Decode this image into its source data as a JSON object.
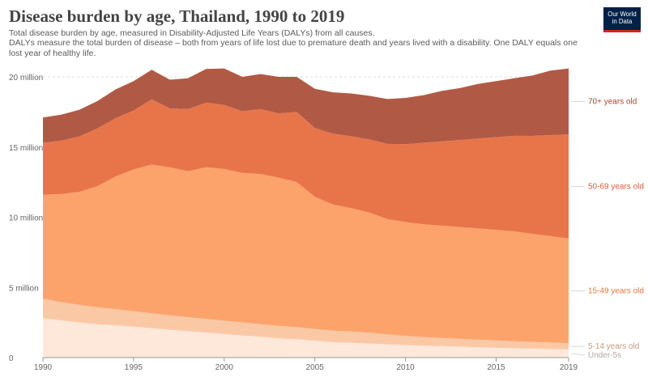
{
  "header": {
    "title": "Disease burden by age, Thailand, 1990 to 2019",
    "subtitle_line1": "Total disease burden by age, measured in Disability-Adjusted Life Years (DALYs) from all causes.",
    "subtitle_line2": "DALYs measure the total burden of disease – both from years of life lost due to premature death and years lived with a disability. One DALY equals one lost year of healthy life."
  },
  "logo": {
    "line1": "Our World",
    "line2": "in Data",
    "bg_color": "#002147",
    "accent_color": "#ce261e"
  },
  "chart_data": {
    "type": "area",
    "stacked": true,
    "x": [
      1990,
      1991,
      1992,
      1993,
      1994,
      1995,
      1996,
      1997,
      1998,
      1999,
      2000,
      2001,
      2002,
      2003,
      2004,
      2005,
      2006,
      2007,
      2008,
      2009,
      2010,
      2011,
      2012,
      2013,
      2014,
      2015,
      2016,
      2017,
      2018,
      2019
    ],
    "series": [
      {
        "name": "Under-5s",
        "color": "#fde8da",
        "label_color": "#b8a79e",
        "values": [
          2.8,
          2.65,
          2.5,
          2.38,
          2.3,
          2.2,
          2.1,
          1.98,
          1.88,
          1.78,
          1.68,
          1.58,
          1.48,
          1.38,
          1.3,
          1.2,
          1.1,
          1.05,
          1.0,
          0.95,
          0.9,
          0.85,
          0.82,
          0.78,
          0.74,
          0.7,
          0.67,
          0.64,
          0.61,
          0.58
        ]
      },
      {
        "name": "5-14 years old",
        "color": "#fbc8a6",
        "label_color": "#c49a80",
        "values": [
          1.4,
          1.3,
          1.25,
          1.2,
          1.15,
          1.1,
          1.05,
          1.02,
          1.0,
          0.98,
          0.95,
          0.93,
          0.9,
          0.88,
          0.86,
          0.84,
          0.82,
          0.8,
          0.78,
          0.7,
          0.65,
          0.6,
          0.58,
          0.56,
          0.54,
          0.52,
          0.5,
          0.48,
          0.46,
          0.44
        ]
      },
      {
        "name": "15-49 years old",
        "color": "#fca36c",
        "label_color": "#e07b3c",
        "values": [
          7.4,
          7.7,
          8.05,
          8.62,
          9.45,
          10.1,
          10.6,
          10.55,
          10.4,
          10.8,
          10.8,
          10.64,
          10.7,
          10.56,
          10.35,
          9.41,
          8.98,
          8.8,
          8.55,
          8.22,
          8.1,
          8.05,
          8.0,
          7.96,
          7.92,
          7.88,
          7.83,
          7.69,
          7.58,
          7.46
        ]
      },
      {
        "name": "50-69 years old",
        "color": "#e8754a",
        "label_color": "#d4603a",
        "values": [
          3.7,
          3.8,
          3.95,
          4.12,
          4.15,
          4.2,
          4.65,
          4.2,
          4.42,
          4.6,
          4.57,
          4.4,
          4.62,
          4.58,
          4.99,
          4.9,
          5.05,
          5.12,
          5.22,
          5.35,
          5.55,
          5.8,
          6.0,
          6.2,
          6.4,
          6.6,
          6.8,
          6.98,
          7.2,
          7.42
        ]
      },
      {
        "name": "70+ years old",
        "color": "#b05a45",
        "label_color": "#a84630",
        "values": [
          1.8,
          1.85,
          1.9,
          1.95,
          2.05,
          2.1,
          2.1,
          2.05,
          2.2,
          2.4,
          2.6,
          2.45,
          2.5,
          2.6,
          2.5,
          2.8,
          2.95,
          3.05,
          3.1,
          3.2,
          3.3,
          3.4,
          3.6,
          3.7,
          3.9,
          4.0,
          4.1,
          4.3,
          4.6,
          4.7
        ]
      }
    ],
    "y_unit": "million",
    "ylim": [
      0,
      20
    ],
    "y_ticks": [
      {
        "value": 0,
        "label": "0"
      },
      {
        "value": 5,
        "label": "5 million"
      },
      {
        "value": 10,
        "label": "10 million"
      },
      {
        "value": 15,
        "label": "15 million"
      },
      {
        "value": 20,
        "label": "20 million"
      }
    ],
    "x_ticks": [
      1990,
      1995,
      2000,
      2005,
      2010,
      2015,
      2019
    ],
    "xlim": [
      1990,
      2019
    ],
    "grid": "horizontal dashed",
    "legend": "right (labels beside series)"
  }
}
